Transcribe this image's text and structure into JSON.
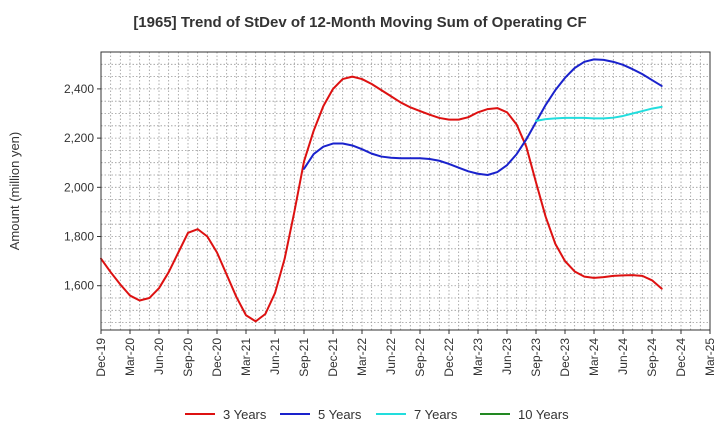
{
  "chart_data": {
    "type": "line",
    "title": "[1965]  Trend of StDev of 12-Month Moving Sum of Operating CF",
    "ylabel": "Amount (million yen)",
    "xlabel": "",
    "ylim": [
      1420,
      2550
    ],
    "y_ticks": [
      1600,
      1800,
      2000,
      2200,
      2400
    ],
    "y_tick_labels": [
      "1,600",
      "1,800",
      "2,000",
      "2,200",
      "2,400"
    ],
    "x_tick_labels": [
      "Dec-19",
      "Mar-20",
      "Jun-20",
      "Sep-20",
      "Dec-20",
      "Mar-21",
      "Jun-21",
      "Sep-21",
      "Dec-21",
      "Mar-22",
      "Jun-22",
      "Sep-22",
      "Dec-22",
      "Mar-23",
      "Jun-23",
      "Sep-23",
      "Dec-23",
      "Mar-24",
      "Jun-24",
      "Sep-24",
      "Dec-24",
      "Mar-25"
    ],
    "x_months": [
      "2019-12",
      "2020-01",
      "2020-02",
      "2020-03",
      "2020-04",
      "2020-05",
      "2020-06",
      "2020-07",
      "2020-08",
      "2020-09",
      "2020-10",
      "2020-11",
      "2020-12",
      "2021-01",
      "2021-02",
      "2021-03",
      "2021-04",
      "2021-05",
      "2021-06",
      "2021-07",
      "2021-08",
      "2021-09",
      "2021-10",
      "2021-11",
      "2021-12",
      "2022-01",
      "2022-02",
      "2022-03",
      "2022-04",
      "2022-05",
      "2022-06",
      "2022-07",
      "2022-08",
      "2022-09",
      "2022-10",
      "2022-11",
      "2022-12",
      "2023-01",
      "2023-02",
      "2023-03",
      "2023-04",
      "2023-05",
      "2023-06",
      "2023-07",
      "2023-08",
      "2023-09",
      "2023-10",
      "2023-11",
      "2023-12",
      "2024-01",
      "2024-02",
      "2024-03",
      "2024-04",
      "2024-05",
      "2024-06",
      "2024-07",
      "2024-08",
      "2024-09",
      "2024-10",
      "2024-11",
      "2024-12",
      "2025-01",
      "2025-02",
      "2025-03"
    ],
    "grid": true,
    "legend_position": "bottom",
    "series": [
      {
        "name": "3 Years",
        "color": "#dd1111",
        "values": [
          1710,
          1655,
          1605,
          1560,
          1540,
          1550,
          1590,
          1655,
          1735,
          1815,
          1830,
          1800,
          1735,
          1645,
          1555,
          1480,
          1455,
          1485,
          1570,
          1710,
          1900,
          2105,
          2230,
          2330,
          2400,
          2440,
          2450,
          2440,
          2420,
          2395,
          2370,
          2345,
          2325,
          2310,
          2295,
          2282,
          2275,
          2275,
          2285,
          2305,
          2318,
          2322,
          2305,
          2255,
          2165,
          2020,
          1880,
          1770,
          1700,
          1658,
          1637,
          1632,
          1635,
          1640,
          1642,
          1643,
          1640,
          1622,
          1588,
          null,
          null,
          null,
          null,
          null
        ]
      },
      {
        "name": "5 Years",
        "color": "#1a22cc",
        "values": [
          null,
          null,
          null,
          null,
          null,
          null,
          null,
          null,
          null,
          null,
          null,
          null,
          null,
          null,
          null,
          null,
          null,
          null,
          null,
          null,
          null,
          2075,
          2135,
          2165,
          2178,
          2178,
          2170,
          2155,
          2137,
          2125,
          2120,
          2118,
          2118,
          2118,
          2115,
          2108,
          2095,
          2080,
          2065,
          2055,
          2050,
          2062,
          2090,
          2135,
          2195,
          2265,
          2335,
          2395,
          2445,
          2485,
          2510,
          2520,
          2518,
          2510,
          2498,
          2480,
          2460,
          2436,
          2412,
          null,
          null,
          null,
          null,
          null
        ]
      },
      {
        "name": "7 Years",
        "color": "#22dddd",
        "values": [
          null,
          null,
          null,
          null,
          null,
          null,
          null,
          null,
          null,
          null,
          null,
          null,
          null,
          null,
          null,
          null,
          null,
          null,
          null,
          null,
          null,
          null,
          null,
          null,
          null,
          null,
          null,
          null,
          null,
          null,
          null,
          null,
          null,
          null,
          null,
          null,
          null,
          null,
          null,
          null,
          null,
          null,
          null,
          null,
          null,
          2270,
          2277,
          2280,
          2282,
          2282,
          2282,
          2280,
          2280,
          2283,
          2290,
          2300,
          2310,
          2320,
          2327,
          null,
          null,
          null,
          null,
          null
        ]
      },
      {
        "name": "10 Years",
        "color": "#228822",
        "values": []
      }
    ]
  }
}
